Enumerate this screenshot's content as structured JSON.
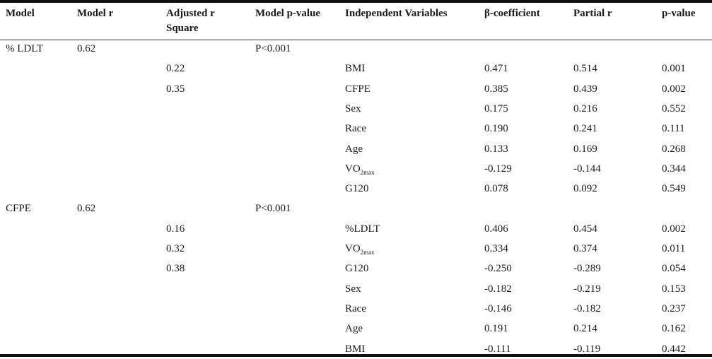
{
  "headers": [
    "Model",
    "Model r",
    "Adjusted r Square",
    "Model p-value",
    "Independent Variables",
    "β-coefficient",
    "Partial r",
    "p-value"
  ],
  "headers_lines": {
    "adjusted_line1": "Adjusted r",
    "adjusted_line2": "Square"
  },
  "models": [
    {
      "name": "% LDLT",
      "model_r": "0.62",
      "model_p": "P<0.001",
      "adjusted_r_square": [
        "0.22",
        "0.35"
      ],
      "rows": [
        {
          "variable": "BMI",
          "beta": "0.471",
          "partial_r": "0.514",
          "p": "0.001"
        },
        {
          "variable": "CFPE",
          "beta": "0.385",
          "partial_r": "0.439",
          "p": "0.002"
        },
        {
          "variable": "Sex",
          "beta": "0.175",
          "partial_r": "0.216",
          "p": "0.552"
        },
        {
          "variable": "Race",
          "beta": "0.190",
          "partial_r": "0.241",
          "p": "0.111"
        },
        {
          "variable": "Age",
          "beta": "0.133",
          "partial_r": "0.169",
          "p": "0.268"
        },
        {
          "variable": "VO",
          "variable_sub": "2max",
          "beta": "-0.129",
          "partial_r": "-0.144",
          "p": "0.344"
        },
        {
          "variable": "G120",
          "beta": "0.078",
          "partial_r": "0.092",
          "p": "0.549"
        }
      ]
    },
    {
      "name": "CFPE",
      "model_r": "0.62",
      "model_p": "P<0.001",
      "adjusted_r_square": [
        "0.16",
        "0.32",
        "0.38"
      ],
      "rows": [
        {
          "variable": "%LDLT",
          "beta": "0.406",
          "partial_r": "0.454",
          "p": "0.002"
        },
        {
          "variable": "VO",
          "variable_sub": "2max",
          "beta": "0.334",
          "partial_r": "0.374",
          "p": "0.011"
        },
        {
          "variable": "G120",
          "beta": "-0.250",
          "partial_r": "-0.289",
          "p": "0.054"
        },
        {
          "variable": "Sex",
          "beta": "-0.182",
          "partial_r": "-0.219",
          "p": "0.153"
        },
        {
          "variable": "Race",
          "beta": "-0.146",
          "partial_r": "-0.182",
          "p": "0.237"
        },
        {
          "variable": "Age",
          "beta": "0.191",
          "partial_r": "0.214",
          "p": "0.162"
        },
        {
          "variable": "BMI",
          "beta": "-0.111",
          "partial_r": "-0.119",
          "p": "0.442"
        }
      ]
    }
  ]
}
